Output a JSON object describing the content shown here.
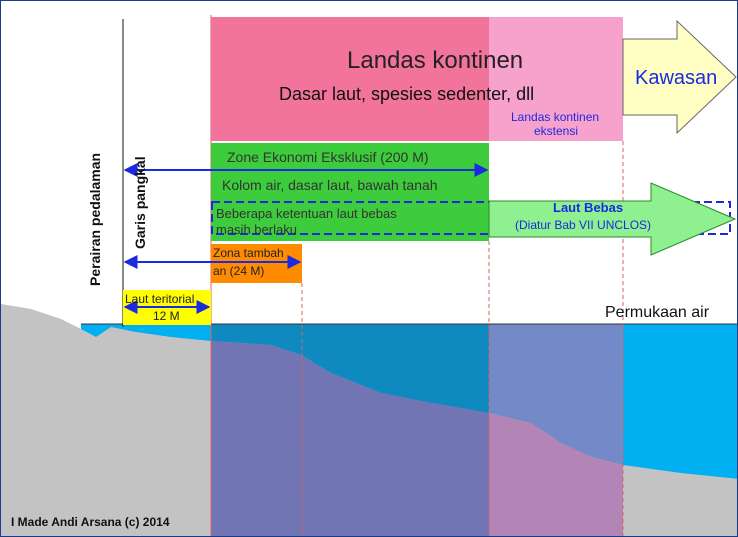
{
  "landas_kontinen": {
    "title": "Landas kontinen",
    "subtitle": "Dasar laut, spesies sedenter, dll",
    "extension": [
      "Landas kontinen",
      "ekstensi"
    ]
  },
  "kawasan": "Kawasan",
  "zee": {
    "title": "Zone Ekonomi Eksklusif (200 M)",
    "scope": "Kolom air, dasar laut, bawah tanah",
    "note": [
      "Beberapa ketentuan laut bebas",
      "masih berlaku"
    ]
  },
  "laut_bebas": {
    "title": "Laut Bebas",
    "note": "(Diatur Bab VII  UNCLOS)"
  },
  "zona_tambahan": [
    "Zona tambah",
    "an (24 M)"
  ],
  "laut_teritorial": [
    "Laut teritorial",
    "12 M"
  ],
  "perairan_pedalaman": "Perairan pedalaman",
  "garis_pangkal": "Garis pangkal",
  "permukaan_air": "Permukaan air",
  "credit": "I Made Andi Arsana (c) 2014",
  "colors": {
    "landas": "#f2739b",
    "landas_ext": "#f7a2cd",
    "zee": "#3ccc3c",
    "laut_bebas": "#8ef08e",
    "zona": "#ff8c00",
    "teritorial": "#ffff00",
    "sea": "#00b0f0",
    "seabed": "#c3c3c3",
    "blue_arrow": "#1a2ae0",
    "red_line": "#e06060"
  }
}
